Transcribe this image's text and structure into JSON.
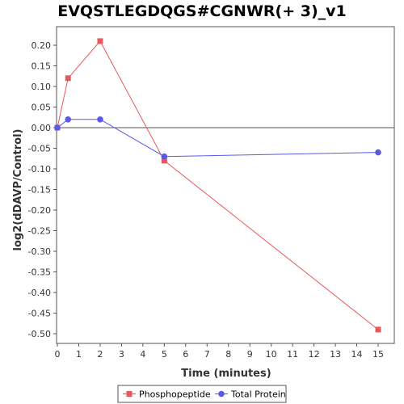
{
  "chart_data": {
    "type": "line",
    "title": "EVQSTLEGDQGS#CGNWR(+ 3)_v1",
    "xlabel": "Time (minutes)",
    "ylabel": "log2(dDAVP/Control)",
    "xlim": [
      0,
      16
    ],
    "ylim": [
      -0.53,
      0.24
    ],
    "xticks": [
      0,
      1,
      2,
      3,
      4,
      5,
      6,
      7,
      8,
      9,
      10,
      11,
      12,
      13,
      14,
      15
    ],
    "yticks": [
      0.2,
      0.15,
      0.1,
      0.05,
      0.0,
      -0.05,
      -0.1,
      -0.15,
      -0.2,
      -0.25,
      -0.3,
      -0.35,
      -0.4,
      -0.45,
      -0.5
    ],
    "ytick_labels": [
      "0.20",
      "0.15",
      "0.10",
      "0.05",
      "0.00",
      "-0.05",
      "-0.10",
      "-0.15",
      "-0.20",
      "-0.25",
      "-0.30",
      "-0.35",
      "-0.40",
      "-0.45",
      "-0.50"
    ],
    "reference_line": 0,
    "grid": false,
    "legend_position": "bottom",
    "series": [
      {
        "name": "Phosphopeptide",
        "color": "#e8575a",
        "marker": "square",
        "x": [
          0,
          0.5,
          2,
          5,
          15
        ],
        "y": [
          0.0,
          0.12,
          0.21,
          -0.08,
          -0.49
        ]
      },
      {
        "name": "Total Protein",
        "color": "#5a5ae8",
        "marker": "circle",
        "x": [
          0,
          0.5,
          2,
          5,
          15
        ],
        "y": [
          0.0,
          0.02,
          0.02,
          -0.07,
          -0.06
        ]
      }
    ]
  }
}
